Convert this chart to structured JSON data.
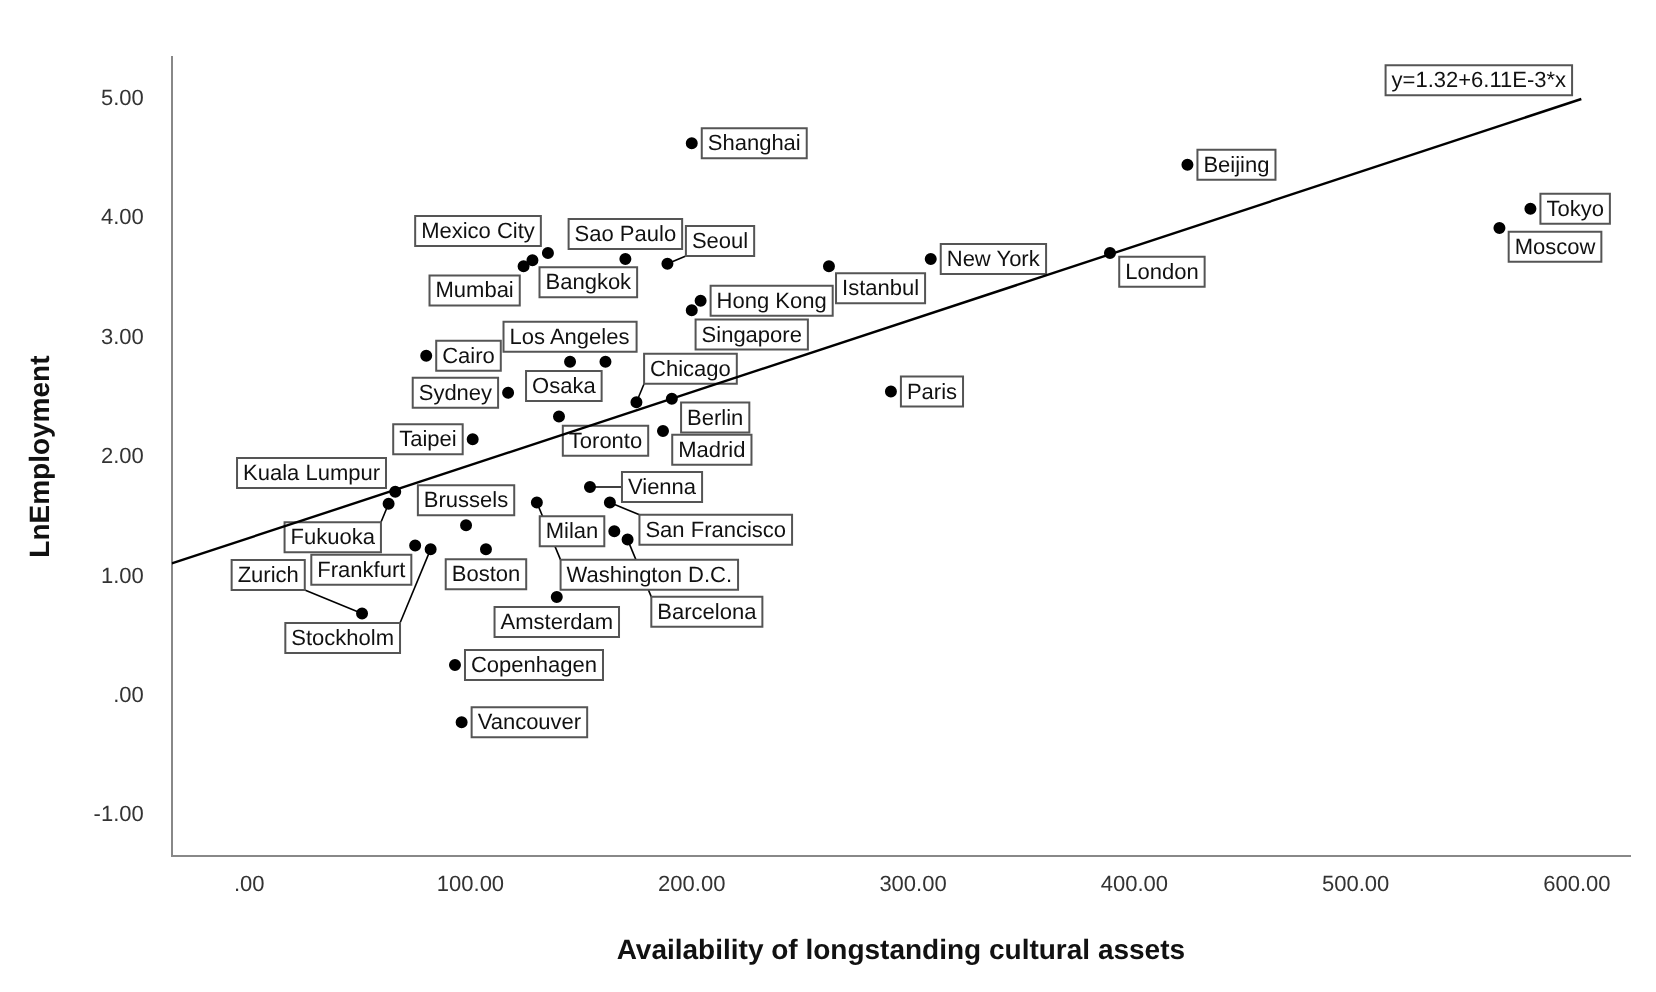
{
  "chart_data": {
    "type": "scatter",
    "xlabel": "Availability of longstanding cultural assets",
    "ylabel": "LnEmployment",
    "xlim": [
      -35,
      624
    ],
    "ylim": [
      -1.34,
      5.35
    ],
    "xticks": [
      {
        "value": 0,
        "label": ".00"
      },
      {
        "value": 100,
        "label": "100.00"
      },
      {
        "value": 200,
        "label": "200.00"
      },
      {
        "value": 300,
        "label": "300.00"
      },
      {
        "value": 400,
        "label": "400.00"
      },
      {
        "value": 500,
        "label": "500.00"
      },
      {
        "value": 600,
        "label": "600.00"
      }
    ],
    "yticks": [
      {
        "value": -1,
        "label": "-1.00"
      },
      {
        "value": 0,
        "label": ".00"
      },
      {
        "value": 1,
        "label": "1.00"
      },
      {
        "value": 2,
        "label": "2.00"
      },
      {
        "value": 3,
        "label": "3.00"
      },
      {
        "value": 4,
        "label": "4.00"
      },
      {
        "value": 5,
        "label": "5.00"
      }
    ],
    "grid": false,
    "legend": false,
    "marker": "circle",
    "series": [
      {
        "color": "#000000",
        "x": [
          200,
          135,
          128,
          124,
          170,
          189,
          204,
          200,
          262,
          308,
          389,
          424,
          565,
          579,
          290,
          80,
          145,
          161,
          117,
          175,
          191,
          187,
          140,
          101,
          66,
          63,
          130,
          154,
          163,
          98,
          107,
          75,
          82,
          165,
          171,
          139,
          51,
          93,
          96
        ],
        "values": [
          4.63,
          3.71,
          3.65,
          3.6,
          3.66,
          3.62,
          3.31,
          3.23,
          3.6,
          3.66,
          3.71,
          4.45,
          3.92,
          4.08,
          2.55,
          2.85,
          2.8,
          2.8,
          2.54,
          2.46,
          2.49,
          2.22,
          2.34,
          2.15,
          1.71,
          1.61,
          1.62,
          1.75,
          1.62,
          1.43,
          1.23,
          1.26,
          1.23,
          1.38,
          1.31,
          0.83,
          0.69,
          0.26,
          -0.22
        ]
      },
      {
        "type": "line",
        "marker": "none",
        "color": "#000000",
        "x": [
          -35,
          602
        ],
        "values": [
          1.11,
          5.0
        ]
      }
    ],
    "annotations": [
      {
        "text": "Shanghai",
        "x": 200,
        "y": 4.63
      },
      {
        "text": "Mexico City",
        "x": 135,
        "y": 3.71
      },
      {
        "text": "Bangkok",
        "x": 128,
        "y": 3.65
      },
      {
        "text": "Mumbai",
        "x": 124,
        "y": 3.6
      },
      {
        "text": "Sao Paulo",
        "x": 170,
        "y": 3.66
      },
      {
        "text": "Seoul",
        "x": 189,
        "y": 3.62
      },
      {
        "text": "Hong Kong",
        "x": 204,
        "y": 3.31
      },
      {
        "text": "Singapore",
        "x": 200,
        "y": 3.23
      },
      {
        "text": "Istanbul",
        "x": 262,
        "y": 3.6
      },
      {
        "text": "New York",
        "x": 308,
        "y": 3.66
      },
      {
        "text": "London",
        "x": 389,
        "y": 3.71
      },
      {
        "text": "Beijing",
        "x": 424,
        "y": 4.45
      },
      {
        "text": "Moscow",
        "x": 565,
        "y": 3.92
      },
      {
        "text": "Tokyo",
        "x": 579,
        "y": 4.08
      },
      {
        "text": "Paris",
        "x": 290,
        "y": 2.55
      },
      {
        "text": "Cairo",
        "x": 80,
        "y": 2.85
      },
      {
        "text": "Los Angeles",
        "x": 145,
        "y": 2.8
      },
      {
        "text": "Osaka",
        "x": 161,
        "y": 2.8
      },
      {
        "text": "Sydney",
        "x": 117,
        "y": 2.54
      },
      {
        "text": "Chicago",
        "x": 175,
        "y": 2.46
      },
      {
        "text": "Berlin",
        "x": 191,
        "y": 2.49
      },
      {
        "text": "Madrid",
        "x": 187,
        "y": 2.22
      },
      {
        "text": "Toronto",
        "x": 140,
        "y": 2.34
      },
      {
        "text": "Taipei",
        "x": 101,
        "y": 2.15
      },
      {
        "text": "Kuala Lumpur",
        "x": 66,
        "y": 1.71
      },
      {
        "text": "Fukuoka",
        "x": 63,
        "y": 1.61
      },
      {
        "text": "Washington D.C.",
        "x": 130,
        "y": 1.62
      },
      {
        "text": "Vienna",
        "x": 154,
        "y": 1.75
      },
      {
        "text": "San Francisco",
        "x": 163,
        "y": 1.62
      },
      {
        "text": "Brussels",
        "x": 98,
        "y": 1.43
      },
      {
        "text": "Boston",
        "x": 107,
        "y": 1.23
      },
      {
        "text": "Frankfurt",
        "x": 75,
        "y": 1.26
      },
      {
        "text": "Stockholm",
        "x": 82,
        "y": 1.23
      },
      {
        "text": "Milan",
        "x": 165,
        "y": 1.38
      },
      {
        "text": "Barcelona",
        "x": 171,
        "y": 1.31
      },
      {
        "text": "Amsterdam",
        "x": 139,
        "y": 0.83
      },
      {
        "text": "Zurich",
        "x": 51,
        "y": 0.69
      },
      {
        "text": "Copenhagen",
        "x": 93,
        "y": 0.26
      },
      {
        "text": "Vancouver",
        "x": 96,
        "y": -0.22
      },
      {
        "text": "y=1.32+6.11E-3*x",
        "x": 602,
        "y": 5.0
      }
    ]
  }
}
